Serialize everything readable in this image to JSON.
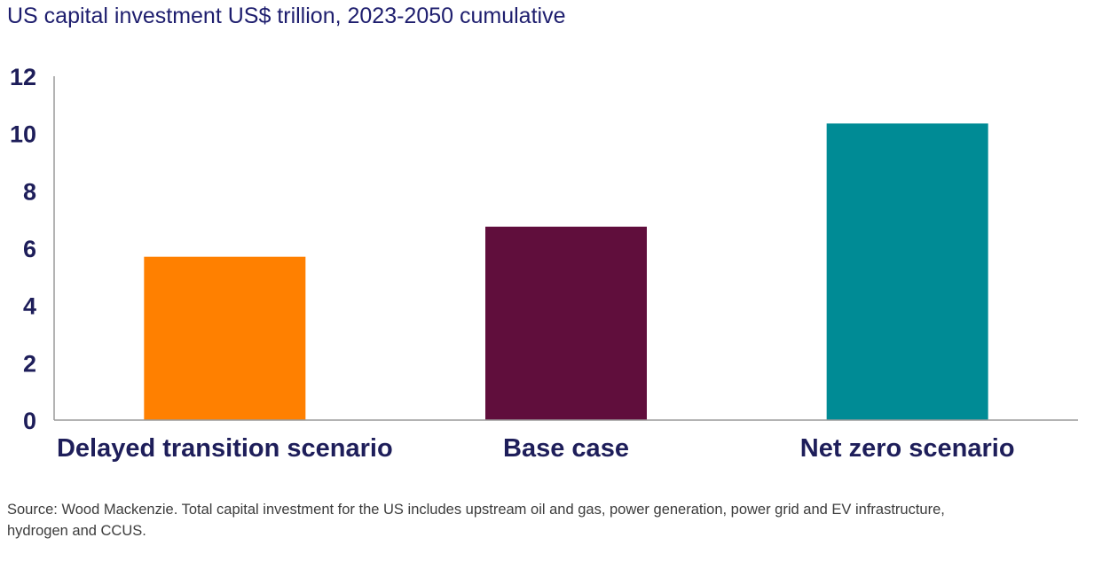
{
  "chart_data": {
    "type": "bar",
    "title": "US capital investment US$ trillion, 2023-2050 cumulative",
    "categories": [
      "Delayed transition scenario",
      "Base case",
      "Net zero scenario"
    ],
    "values": [
      5.7,
      6.75,
      10.35
    ],
    "colors": [
      "#ff8000",
      "#600e3c",
      "#008b95"
    ],
    "ylim": [
      0,
      12
    ],
    "yticks": [
      "0",
      "2",
      "4",
      "6",
      "8",
      "10",
      "12"
    ],
    "grid": false,
    "legend": "none",
    "xlabel": "",
    "ylabel": ""
  },
  "source_note": "Source: Wood Mackenzie. Total capital investment for the US includes upstream oil and gas, power generation, power grid and EV infrastructure, hydrogen and CCUS."
}
